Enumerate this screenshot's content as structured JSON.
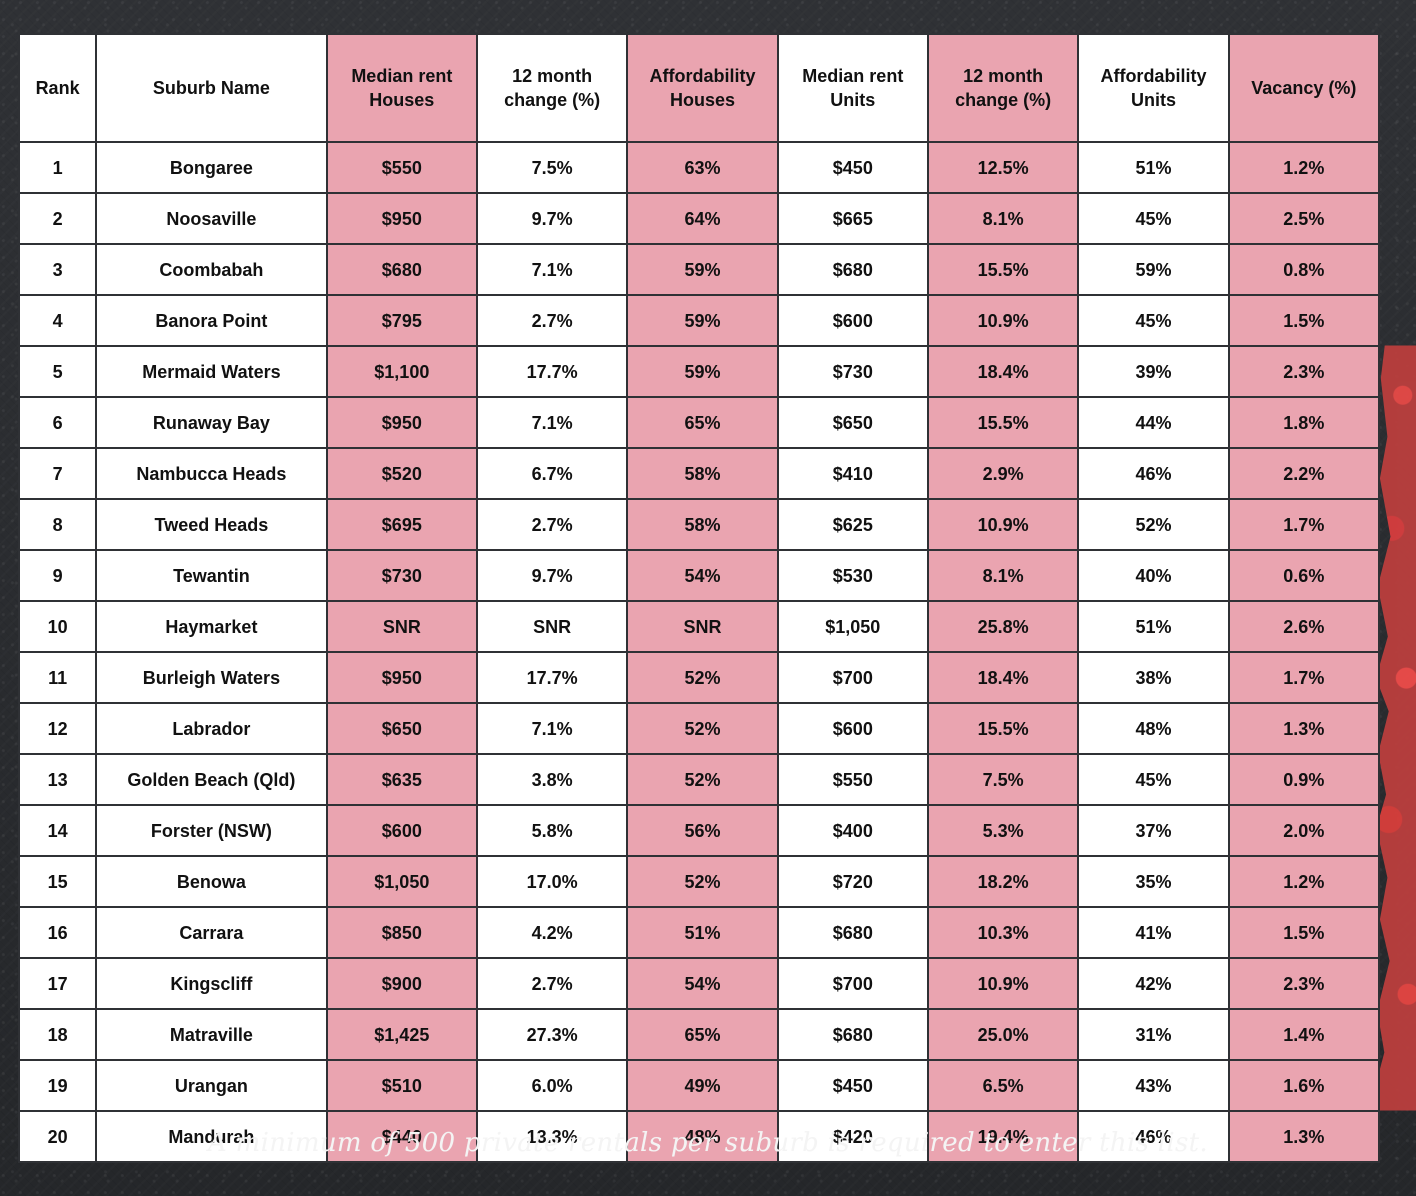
{
  "table": {
    "headers": [
      "Rank",
      "Suburb Name",
      "Median rent\nHouses",
      "12 month\nchange (%)",
      "Affordability\nHouses",
      "Median rent\nUnits",
      "12 month\nchange (%)",
      "Affordability\nUnits",
      "Vacancy (%)"
    ],
    "rows": [
      [
        "1",
        "Bongaree",
        "$550",
        "7.5%",
        "63%",
        "$450",
        "12.5%",
        "51%",
        "1.2%"
      ],
      [
        "2",
        "Noosaville",
        "$950",
        "9.7%",
        "64%",
        "$665",
        "8.1%",
        "45%",
        "2.5%"
      ],
      [
        "3",
        "Coombabah",
        "$680",
        "7.1%",
        "59%",
        "$680",
        "15.5%",
        "59%",
        "0.8%"
      ],
      [
        "4",
        "Banora Point",
        "$795",
        "2.7%",
        "59%",
        "$600",
        "10.9%",
        "45%",
        "1.5%"
      ],
      [
        "5",
        "Mermaid Waters",
        "$1,100",
        "17.7%",
        "59%",
        "$730",
        "18.4%",
        "39%",
        "2.3%"
      ],
      [
        "6",
        "Runaway Bay",
        "$950",
        "7.1%",
        "65%",
        "$650",
        "15.5%",
        "44%",
        "1.8%"
      ],
      [
        "7",
        "Nambucca Heads",
        "$520",
        "6.7%",
        "58%",
        "$410",
        "2.9%",
        "46%",
        "2.2%"
      ],
      [
        "8",
        "Tweed Heads",
        "$695",
        "2.7%",
        "58%",
        "$625",
        "10.9%",
        "52%",
        "1.7%"
      ],
      [
        "9",
        "Tewantin",
        "$730",
        "9.7%",
        "54%",
        "$530",
        "8.1%",
        "40%",
        "0.6%"
      ],
      [
        "10",
        "Haymarket",
        "SNR",
        "SNR",
        "SNR",
        "$1,050",
        "25.8%",
        "51%",
        "2.6%"
      ],
      [
        "11",
        "Burleigh Waters",
        "$950",
        "17.7%",
        "52%",
        "$700",
        "18.4%",
        "38%",
        "1.7%"
      ],
      [
        "12",
        "Labrador",
        "$650",
        "7.1%",
        "52%",
        "$600",
        "15.5%",
        "48%",
        "1.3%"
      ],
      [
        "13",
        "Golden Beach (Qld)",
        "$635",
        "3.8%",
        "52%",
        "$550",
        "7.5%",
        "45%",
        "0.9%"
      ],
      [
        "14",
        "Forster (NSW)",
        "$600",
        "5.8%",
        "56%",
        "$400",
        "5.3%",
        "37%",
        "2.0%"
      ],
      [
        "15",
        "Benowa",
        "$1,050",
        "17.0%",
        "52%",
        "$720",
        "18.2%",
        "35%",
        "1.2%"
      ],
      [
        "16",
        "Carrara",
        "$850",
        "4.2%",
        "51%",
        "$680",
        "10.3%",
        "41%",
        "1.5%"
      ],
      [
        "17",
        "Kingscliff",
        "$900",
        "2.7%",
        "54%",
        "$700",
        "10.9%",
        "42%",
        "2.3%"
      ],
      [
        "18",
        "Matraville",
        "$1,425",
        "27.3%",
        "65%",
        "$680",
        "25.0%",
        "31%",
        "1.4%"
      ],
      [
        "19",
        "Urangan",
        "$510",
        "6.0%",
        "49%",
        "$450",
        "6.5%",
        "43%",
        "1.6%"
      ],
      [
        "20",
        "Mandurah",
        "$440",
        "13.3%",
        "48%",
        "$420",
        "19.4%",
        "46%",
        "1.3%"
      ]
    ]
  },
  "footnote": "A minimum of 500 private rentals per suburb is required to enter this list.",
  "colors": {
    "pink": "#eaa4b0",
    "background": "#2f3135",
    "accent_red": "#e64643"
  }
}
